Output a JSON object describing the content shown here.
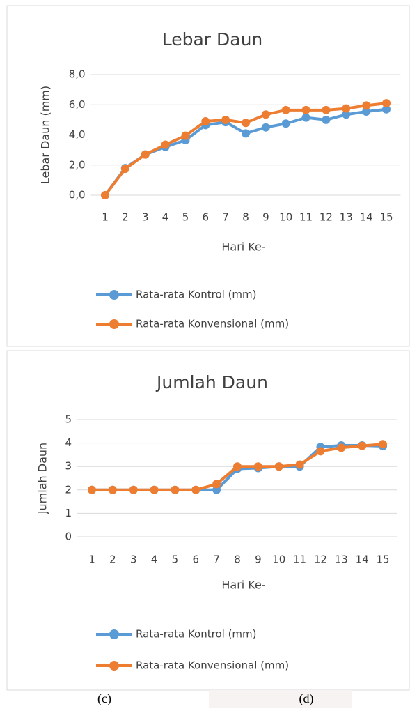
{
  "chart_data": [
    {
      "type": "line",
      "title": "Lebar Daun",
      "x_label": "Hari Ke-",
      "y_label": "Lebar Daun (mm)",
      "categories": [
        "1",
        "2",
        "3",
        "4",
        "5",
        "6",
        "7",
        "8",
        "9",
        "10",
        "11",
        "12",
        "13",
        "14",
        "15"
      ],
      "series": [
        {
          "name": "Rata-rata Kontrol (mm)",
          "color": "#5b9bd5",
          "values": [
            0,
            1.8,
            2.7,
            3.2,
            3.65,
            4.65,
            4.85,
            4.1,
            4.5,
            4.75,
            5.15,
            5.0,
            5.35,
            5.55,
            5.7
          ]
        },
        {
          "name": "Rata-rata Konvensional (mm)",
          "color": "#ed7d31",
          "values": [
            0,
            1.75,
            2.7,
            3.35,
            3.95,
            4.9,
            5.0,
            4.8,
            5.35,
            5.65,
            5.65,
            5.65,
            5.75,
            5.95,
            6.1
          ]
        }
      ],
      "ylim": [
        0,
        8
      ],
      "yticks": [
        {
          "value": 0,
          "label": "0,0"
        },
        {
          "value": 2,
          "label": "2,0"
        },
        {
          "value": 4,
          "label": "4,0"
        },
        {
          "value": 6,
          "label": "6,0"
        },
        {
          "value": 8,
          "label": "8,0"
        }
      ],
      "grid": true,
      "legend": "bottom"
    },
    {
      "type": "line",
      "title": "Jumlah Daun",
      "x_label": "Hari Ke-",
      "y_label": "Jumlah Daun",
      "categories": [
        "1",
        "2",
        "3",
        "4",
        "5",
        "6",
        "7",
        "8",
        "9",
        "10",
        "11",
        "12",
        "13",
        "14",
        "15"
      ],
      "series": [
        {
          "name": "Rata-rata Kontrol (mm)",
          "color": "#5b9bd5",
          "values": [
            2,
            2,
            2,
            2,
            2,
            2,
            2,
            2.9,
            2.93,
            3.0,
            3.0,
            3.83,
            3.9,
            3.9,
            3.87
          ]
        },
        {
          "name": "Rata-rata Konvensional (mm)",
          "color": "#ed7d31",
          "values": [
            2,
            2,
            2,
            2,
            2,
            2,
            2.25,
            3.0,
            3.0,
            3.0,
            3.08,
            3.65,
            3.8,
            3.88,
            3.95
          ]
        }
      ],
      "ylim": [
        0,
        5
      ],
      "yticks": [
        0,
        1,
        2,
        3,
        4,
        5
      ],
      "grid": true,
      "legend": "bottom"
    }
  ],
  "captions": [
    "(c)",
    "(d)"
  ]
}
